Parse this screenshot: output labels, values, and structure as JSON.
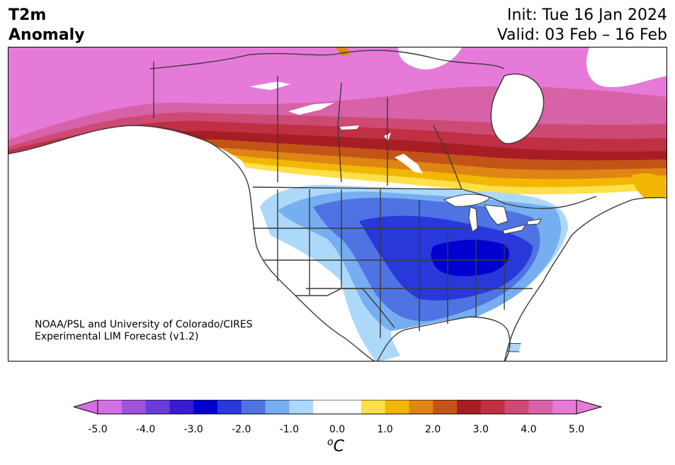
{
  "header": {
    "title_line1": "T2m",
    "title_line2": "Anomaly",
    "init": "Init: Tue 16 Jan 2024",
    "valid": "Valid: 03 Feb – 16 Feb"
  },
  "credit": {
    "line1": "NOAA/PSL and University of Colorado/CIRES",
    "line2": "Experimental LIM Forecast (v1.2)"
  },
  "colorbar": {
    "ticks": [
      "-5.0",
      "-4.0",
      "-3.0",
      "-2.0",
      "-1.0",
      "0.0",
      "1.0",
      "2.0",
      "3.0",
      "4.0",
      "5.0"
    ],
    "unit_sup": "o",
    "unit": "C",
    "colors": [
      "#d56fe6",
      "#9f52dc",
      "#6a3adb",
      "#3a1ad2",
      "#0000cf",
      "#2838da",
      "#4f73e3",
      "#76aef2",
      "#acd8fa",
      "#ffffff",
      "#ffffff",
      "#fde04b",
      "#f2b705",
      "#de8513",
      "#c35418",
      "#a61e23",
      "#bf3045",
      "#cd4a74",
      "#d862a8",
      "#e67ad9"
    ]
  },
  "map": {
    "region": "North America",
    "field": "2m temperature anomaly"
  }
}
